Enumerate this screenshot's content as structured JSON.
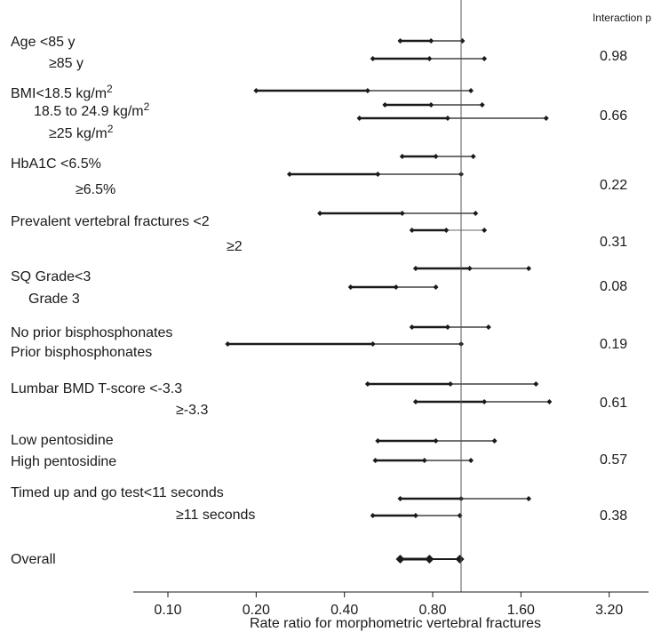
{
  "chart_data": {
    "type": "forest",
    "xlabel": "Rate ratio for morphometric vertebral fractures",
    "xscale": "log",
    "xlim": [
      0.1,
      3.5
    ],
    "ticks": [
      "0.10",
      "0.20",
      "0.40",
      "0.80",
      "1.60",
      "3.20"
    ],
    "reference_line": 1.0,
    "pvalue_header": "Interaction p",
    "rows": [
      {
        "label": "Age <85 y",
        "estimate": 0.79,
        "lower": 0.62,
        "upper": 1.01
      },
      {
        "label": "≥85 y",
        "estimate": 0.78,
        "lower": 0.5,
        "upper": 1.2,
        "p": "0.98"
      },
      {
        "label": "BMI<18.5 kg/m",
        "sup": "2",
        "estimate": 0.48,
        "lower": 0.2,
        "upper": 1.08
      },
      {
        "label": "18.5 to 24.9 kg/m",
        "sup": "2",
        "estimate": 0.79,
        "lower": 0.55,
        "upper": 1.18
      },
      {
        "label": "≥25 kg/m",
        "sup": "2",
        "estimate": 0.9,
        "lower": 0.45,
        "upper": 1.95,
        "p": "0.66"
      },
      {
        "label": "HbA1C <6.5%",
        "estimate": 0.82,
        "lower": 0.63,
        "upper": 1.1
      },
      {
        "label": "≥6.5%",
        "estimate": 0.52,
        "lower": 0.26,
        "upper": 1.0,
        "p": "0.22"
      },
      {
        "label": "Prevalent vertebral fractures <2",
        "estimate": 0.63,
        "lower": 0.33,
        "upper": 1.12
      },
      {
        "label": "≥2",
        "estimate": 0.89,
        "lower": 0.68,
        "upper": 1.2,
        "p": "0.31"
      },
      {
        "label": "SQ Grade<3",
        "estimate": 1.07,
        "lower": 0.7,
        "upper": 1.7
      },
      {
        "label": "Grade 3",
        "estimate": 0.6,
        "lower": 0.42,
        "upper": 0.82,
        "p": "0.08"
      },
      {
        "label": "No prior bisphosphonates",
        "estimate": 0.9,
        "lower": 0.68,
        "upper": 1.24
      },
      {
        "label": "Prior bisphosphonates",
        "estimate": 0.5,
        "lower": 0.16,
        "upper": 1.0,
        "p": "0.19"
      },
      {
        "label": "Lumbar BMD T-score <-3.3",
        "estimate": 0.92,
        "lower": 0.48,
        "upper": 1.8
      },
      {
        "label": "≥-3.3",
        "estimate": 1.2,
        "lower": 0.7,
        "upper": 2.0,
        "p": "0.61"
      },
      {
        "label": "Low pentosidine",
        "estimate": 0.82,
        "lower": 0.52,
        "upper": 1.3
      },
      {
        "label": "High pentosidine",
        "estimate": 0.75,
        "lower": 0.51,
        "upper": 1.08,
        "p": "0.57"
      },
      {
        "label": "Timed up and go test<11 seconds",
        "estimate": 1.0,
        "lower": 0.62,
        "upper": 1.7
      },
      {
        "label": "≥11 seconds",
        "estimate": 0.7,
        "lower": 0.5,
        "upper": 0.99,
        "p": "0.38"
      },
      {
        "label": "Overall",
        "estimate": 0.78,
        "lower": 0.62,
        "upper": 0.99,
        "overall": true
      }
    ]
  }
}
